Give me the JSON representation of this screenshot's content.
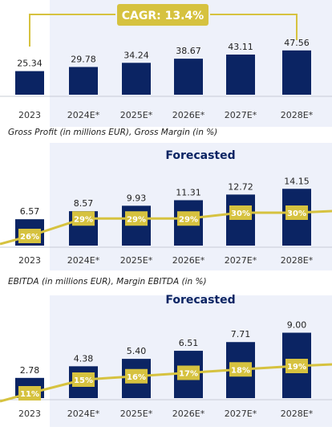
{
  "colors": {
    "bar": "#0b2463",
    "accent": "#d6c23f",
    "forecast_bg": "#eef1fa",
    "axis": "#c8ccd6",
    "label": "#222222",
    "tick": "#333333",
    "pill_text": "#ffffff"
  },
  "chart_data": [
    {
      "type": "bar",
      "title": "",
      "categories": [
        "2023",
        "2024E*",
        "2025E*",
        "2026E*",
        "2027E*",
        "2028E*"
      ],
      "series": [
        {
          "name": "",
          "values": [
            25.34,
            29.78,
            34.24,
            38.67,
            43.11,
            47.56
          ]
        }
      ],
      "value_labels": [
        "25.34",
        "29.78",
        "34.24",
        "38.67",
        "43.11",
        "47.56"
      ],
      "annotation": "CAGR: 13.4%",
      "forecast_label": "",
      "ylim": [
        0,
        50
      ],
      "grid": false,
      "legend": "none"
    },
    {
      "type": "bar",
      "title": "Gross Profit (in millions EUR), Gross Margin (in %)",
      "categories": [
        "2023",
        "2024E*",
        "2025E*",
        "2026E*",
        "2027E*",
        "2028E*"
      ],
      "series": [
        {
          "name": "",
          "values": [
            6.57,
            8.57,
            9.93,
            11.31,
            12.72,
            14.15
          ]
        }
      ],
      "value_labels": [
        "6.57",
        "8.57",
        "9.93",
        "11.31",
        "12.72",
        "14.15"
      ],
      "line": {
        "values": [
          26,
          29,
          29,
          29,
          30,
          30
        ],
        "labels": [
          "26%",
          "29%",
          "29%",
          "29%",
          "30%",
          "30%"
        ]
      },
      "forecast_label": "Forecasted",
      "ylim": [
        0,
        15
      ],
      "grid": false,
      "legend": "none"
    },
    {
      "type": "bar",
      "title": "EBITDA (in millions EUR), Margin EBITDA (in %)",
      "categories": [
        "2023",
        "2024E*",
        "2025E*",
        "2026E*",
        "2027E*",
        "2028E*"
      ],
      "series": [
        {
          "name": "",
          "values": [
            2.78,
            4.38,
            5.4,
            6.51,
            7.71,
            9.0
          ]
        }
      ],
      "value_labels": [
        "2.78",
        "4.38",
        "5.40",
        "6.51",
        "7.71",
        "9.00"
      ],
      "line": {
        "values": [
          11,
          15,
          16,
          17,
          18,
          19
        ],
        "labels": [
          "11%",
          "15%",
          "16%",
          "17%",
          "18%",
          "19%"
        ]
      },
      "forecast_label": "Forecasted",
      "ylim": [
        0,
        9.5
      ],
      "grid": false,
      "legend": "none"
    }
  ]
}
